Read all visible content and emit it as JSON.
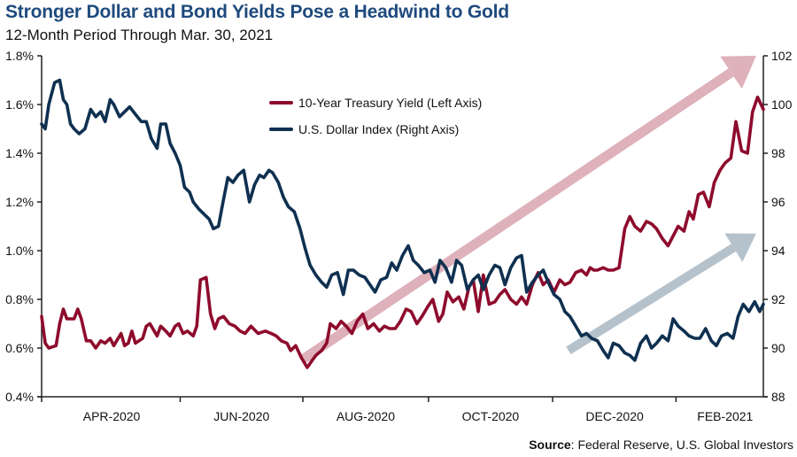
{
  "title": "Stronger Dollar and Bond Yields Pose a Headwind to Gold",
  "subtitle": "12-Month Period Through Mar. 30, 2021",
  "source": {
    "label": "Source",
    "text": ": Federal Reserve, U.S. Global Investors"
  },
  "colors": {
    "title": "#1e4a7e",
    "treasury": "#8e0b2c",
    "dollar": "#0f3050",
    "treasury_arrow": "#deb1bb",
    "dollar_arrow": "#b5c1cb",
    "axis": "#222222"
  },
  "chart_data": {
    "type": "line",
    "title": "Stronger Dollar and Bond Yields Pose a Headwind to Gold",
    "subtitle": "12-Month Period Through Mar. 30, 2021",
    "x_range": [
      "2020-03-30",
      "2021-03-30"
    ],
    "x_ticks": [
      "APR-2020",
      "JUN-2020",
      "AUG-2020",
      "OCT-2020",
      "DEC-2020",
      "FEB-2021"
    ],
    "left_axis": {
      "label": "10-Year Treasury Yield",
      "ylim": [
        0.4,
        1.8
      ],
      "ticks": [
        "0.4%",
        "0.6%",
        "0.8%",
        "1.0%",
        "1.2%",
        "1.4%",
        "1.6%",
        "1.8%"
      ],
      "tick_values": [
        0.4,
        0.6,
        0.8,
        1.0,
        1.2,
        1.4,
        1.6,
        1.8
      ]
    },
    "right_axis": {
      "label": "U.S. Dollar Index",
      "ylim": [
        88,
        102
      ],
      "ticks": [
        "88",
        "90",
        "92",
        "94",
        "96",
        "98",
        "100",
        "102"
      ],
      "tick_values": [
        88,
        90,
        92,
        94,
        96,
        98,
        100,
        102
      ]
    },
    "grid": false,
    "legend": {
      "placement": "top-center",
      "entries": [
        {
          "name": "10-Year Treasury Yield (Left Axis)",
          "series": "treasury"
        },
        {
          "name": "U.S. Dollar Index (Right Axis)",
          "series": "dollar"
        }
      ]
    },
    "series": [
      {
        "name": "10-Year Treasury Yield (Left Axis)",
        "key": "treasury",
        "axis": "left",
        "x_fraction": [
          0.0,
          0.005,
          0.01,
          0.02,
          0.025,
          0.03,
          0.035,
          0.045,
          0.05,
          0.055,
          0.062,
          0.068,
          0.075,
          0.082,
          0.088,
          0.095,
          0.1,
          0.11,
          0.115,
          0.12,
          0.125,
          0.13,
          0.14,
          0.145,
          0.15,
          0.16,
          0.165,
          0.172,
          0.178,
          0.185,
          0.19,
          0.196,
          0.202,
          0.21,
          0.215,
          0.22,
          0.228,
          0.234,
          0.24,
          0.245,
          0.252,
          0.26,
          0.268,
          0.275,
          0.282,
          0.29,
          0.3,
          0.31,
          0.318,
          0.325,
          0.332,
          0.34,
          0.345,
          0.352,
          0.36,
          0.368,
          0.375,
          0.38,
          0.388,
          0.395,
          0.4,
          0.408,
          0.415,
          0.422,
          0.43,
          0.437,
          0.445,
          0.452,
          0.46,
          0.468,
          0.475,
          0.482,
          0.49,
          0.497,
          0.505,
          0.512,
          0.52,
          0.527,
          0.535,
          0.542,
          0.55,
          0.556,
          0.562,
          0.57,
          0.578,
          0.585,
          0.592,
          0.598,
          0.605,
          0.612,
          0.62,
          0.628,
          0.635,
          0.642,
          0.65,
          0.658,
          0.665,
          0.672,
          0.68,
          0.688,
          0.695,
          0.702,
          0.71,
          0.718,
          0.725,
          0.732,
          0.74,
          0.748,
          0.755,
          0.76,
          0.765,
          0.77,
          0.778,
          0.785,
          0.792,
          0.8,
          0.808,
          0.815,
          0.822,
          0.83,
          0.838,
          0.845,
          0.852,
          0.86,
          0.868,
          0.875,
          0.882,
          0.89,
          0.897,
          0.903,
          0.91,
          0.917,
          0.925,
          0.932,
          0.94,
          0.947,
          0.955,
          0.962,
          0.97,
          0.978,
          0.985,
          0.992,
          1.0
        ],
        "values": [
          0.73,
          0.62,
          0.6,
          0.61,
          0.7,
          0.76,
          0.72,
          0.72,
          0.76,
          0.72,
          0.63,
          0.63,
          0.6,
          0.63,
          0.62,
          0.64,
          0.61,
          0.66,
          0.61,
          0.62,
          0.67,
          0.62,
          0.64,
          0.69,
          0.7,
          0.65,
          0.69,
          0.67,
          0.65,
          0.69,
          0.7,
          0.66,
          0.67,
          0.65,
          0.69,
          0.88,
          0.89,
          0.74,
          0.68,
          0.72,
          0.73,
          0.7,
          0.69,
          0.67,
          0.66,
          0.69,
          0.66,
          0.67,
          0.66,
          0.65,
          0.63,
          0.62,
          0.59,
          0.61,
          0.56,
          0.52,
          0.55,
          0.57,
          0.59,
          0.62,
          0.7,
          0.68,
          0.71,
          0.69,
          0.66,
          0.71,
          0.74,
          0.68,
          0.7,
          0.67,
          0.69,
          0.68,
          0.68,
          0.71,
          0.76,
          0.75,
          0.7,
          0.73,
          0.77,
          0.8,
          0.71,
          0.74,
          0.83,
          0.79,
          0.81,
          0.76,
          0.85,
          0.88,
          0.75,
          0.9,
          0.78,
          0.79,
          0.82,
          0.84,
          0.8,
          0.78,
          0.81,
          0.78,
          0.86,
          0.91,
          0.86,
          0.88,
          0.83,
          0.88,
          0.86,
          0.87,
          0.91,
          0.92,
          0.9,
          0.93,
          0.92,
          0.92,
          0.93,
          0.92,
          0.92,
          0.93,
          1.09,
          1.14,
          1.1,
          1.08,
          1.12,
          1.11,
          1.09,
          1.05,
          1.02,
          1.06,
          1.1,
          1.08,
          1.16,
          1.13,
          1.23,
          1.24,
          1.18,
          1.28,
          1.33,
          1.36,
          1.38,
          1.53,
          1.41,
          1.4,
          1.57,
          1.63,
          1.58,
          1.73,
          1.62,
          1.68,
          1.73
        ]
      },
      {
        "name": "U.S. Dollar Index (Right Axis)",
        "key": "dollar",
        "axis": "right",
        "x_fraction": [
          0.0,
          0.005,
          0.01,
          0.018,
          0.025,
          0.03,
          0.035,
          0.04,
          0.045,
          0.052,
          0.06,
          0.068,
          0.075,
          0.082,
          0.088,
          0.095,
          0.1,
          0.108,
          0.115,
          0.122,
          0.13,
          0.138,
          0.145,
          0.152,
          0.16,
          0.165,
          0.172,
          0.178,
          0.185,
          0.192,
          0.198,
          0.205,
          0.21,
          0.218,
          0.225,
          0.232,
          0.238,
          0.245,
          0.252,
          0.258,
          0.265,
          0.272,
          0.28,
          0.288,
          0.295,
          0.302,
          0.308,
          0.315,
          0.32,
          0.328,
          0.335,
          0.342,
          0.35,
          0.358,
          0.365,
          0.372,
          0.38,
          0.388,
          0.395,
          0.402,
          0.41,
          0.418,
          0.425,
          0.432,
          0.44,
          0.448,
          0.455,
          0.462,
          0.47,
          0.478,
          0.485,
          0.492,
          0.5,
          0.508,
          0.515,
          0.522,
          0.53,
          0.538,
          0.545,
          0.552,
          0.56,
          0.568,
          0.575,
          0.582,
          0.59,
          0.598,
          0.605,
          0.612,
          0.62,
          0.628,
          0.635,
          0.642,
          0.65,
          0.658,
          0.665,
          0.672,
          0.68,
          0.688,
          0.695,
          0.702,
          0.71,
          0.718,
          0.725,
          0.732,
          0.74,
          0.748,
          0.755,
          0.762,
          0.77,
          0.778,
          0.785,
          0.792,
          0.8,
          0.808,
          0.815,
          0.822,
          0.83,
          0.838,
          0.845,
          0.852,
          0.86,
          0.868,
          0.875,
          0.882,
          0.89,
          0.897,
          0.905,
          0.912,
          0.92,
          0.928,
          0.935,
          0.942,
          0.95,
          0.958,
          0.965,
          0.972,
          0.98,
          0.988,
          0.995,
          1.0
        ],
        "values": [
          99.2,
          99.0,
          100.0,
          100.9,
          101.0,
          100.2,
          100.0,
          99.2,
          99.0,
          98.8,
          99.0,
          99.8,
          99.5,
          99.7,
          99.3,
          100.2,
          100.0,
          99.5,
          99.7,
          99.9,
          99.6,
          99.3,
          99.3,
          98.6,
          98.2,
          99.2,
          99.2,
          98.4,
          98.0,
          97.5,
          96.6,
          96.4,
          96.0,
          95.7,
          95.5,
          95.3,
          94.9,
          95.0,
          96.1,
          97.0,
          96.8,
          97.1,
          97.3,
          96.0,
          96.7,
          97.1,
          97.0,
          97.3,
          97.2,
          96.8,
          96.2,
          95.8,
          95.6,
          94.9,
          94.1,
          93.4,
          93.0,
          92.7,
          92.5,
          93.0,
          93.1,
          92.2,
          93.2,
          93.2,
          93.0,
          92.9,
          92.6,
          92.3,
          92.8,
          92.9,
          93.5,
          93.2,
          93.8,
          94.2,
          93.6,
          93.4,
          93.1,
          93.2,
          92.7,
          93.6,
          93.3,
          92.7,
          93.6,
          93.4,
          92.4,
          92.8,
          93.0,
          92.4,
          93.0,
          93.4,
          93.3,
          92.6,
          93.3,
          93.7,
          93.8,
          92.3,
          92.7,
          93.0,
          93.2,
          92.7,
          92.2,
          92.0,
          91.5,
          91.3,
          90.9,
          90.5,
          90.6,
          90.4,
          90.3,
          89.9,
          89.6,
          90.2,
          90.1,
          89.8,
          89.7,
          89.5,
          90.2,
          90.5,
          90.0,
          90.2,
          90.5,
          90.3,
          91.2,
          90.9,
          90.7,
          90.5,
          90.4,
          90.4,
          90.8,
          90.3,
          90.1,
          90.5,
          90.6,
          90.4,
          91.3,
          91.8,
          91.5,
          91.9,
          91.5,
          91.8,
          92.6,
          92.8,
          92.9,
          93.3
        ]
      }
    ],
    "annotations": [
      {
        "type": "trend-arrow",
        "series": "treasury",
        "from": {
          "x_fraction": 0.36,
          "value": 0.55
        },
        "to": {
          "x_fraction": 0.99,
          "value": 1.8
        }
      },
      {
        "type": "trend-arrow",
        "series": "dollar",
        "from": {
          "x_fraction": 0.73,
          "value": 89.9
        },
        "to": {
          "x_fraction": 0.99,
          "value": 94.7
        }
      }
    ]
  }
}
